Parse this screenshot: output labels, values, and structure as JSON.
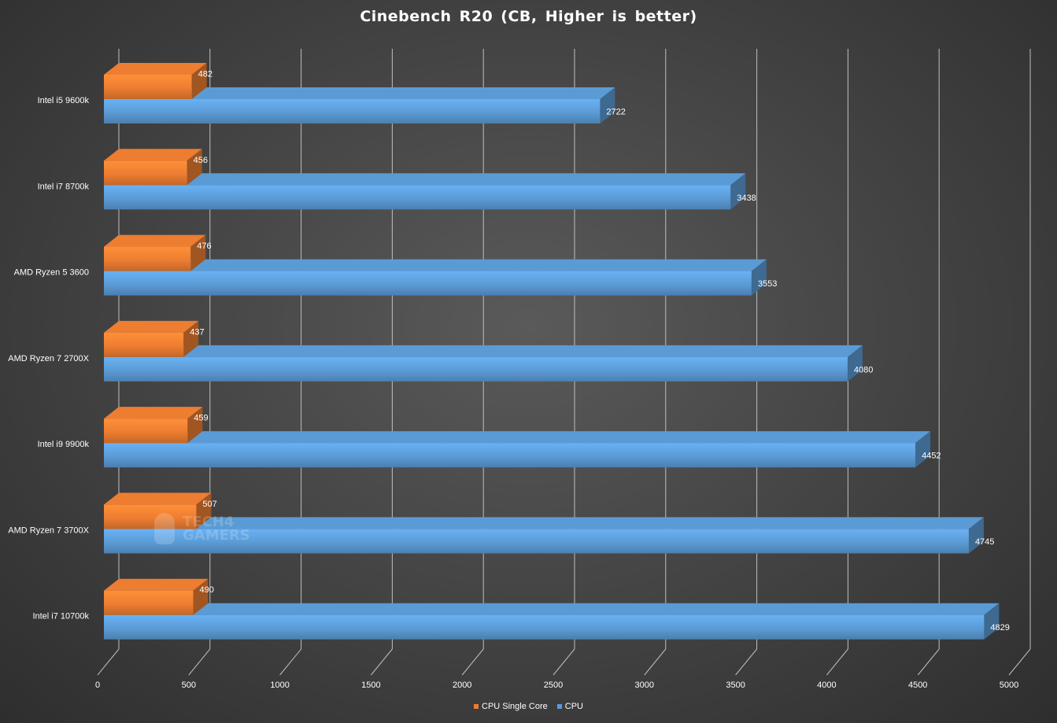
{
  "chart_data": {
    "type": "bar",
    "orientation": "horizontal",
    "title": "Cinebench  R20 (CB, Higher is better)",
    "categories": [
      "Intel i5 9600k",
      "Intel i7 8700k",
      "AMD Ryzen 5 3600",
      "AMD Ryzen 7 2700X",
      "Intel i9 9900k",
      "AMD Ryzen 7 3700X",
      "Intel i7 10700k"
    ],
    "series": [
      {
        "name": "CPU Single Core",
        "values": [
          482,
          456,
          476,
          437,
          459,
          507,
          490
        ],
        "color": "#ed7d31"
      },
      {
        "name": "CPU",
        "values": [
          2722,
          3438,
          3553,
          4080,
          4452,
          4745,
          4829
        ],
        "color": "#5b9bd5"
      }
    ],
    "xlim": [
      0,
      5000
    ],
    "xticks": [
      "0",
      "500",
      "1000",
      "1500",
      "2000",
      "2500",
      "3000",
      "3500",
      "4000",
      "4500",
      "5000"
    ],
    "grid": true,
    "legend_position": "bottom",
    "watermark": "TECH4 GAMERS"
  }
}
